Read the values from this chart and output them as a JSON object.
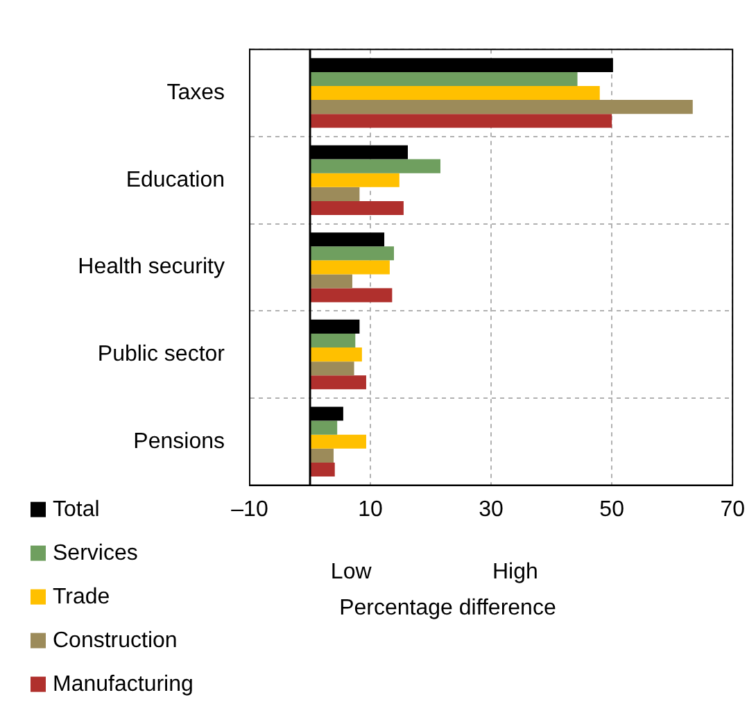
{
  "chart_data": {
    "type": "bar",
    "orientation": "horizontal",
    "categories": [
      "Taxes",
      "Education",
      "Health security",
      "Public sector",
      "Pensions"
    ],
    "series": [
      {
        "name": "Total",
        "color": "#000000",
        "values": [
          50.2,
          16.2,
          12.3,
          8.2,
          5.5
        ]
      },
      {
        "name": "Services",
        "color": "#6f9f5f",
        "values": [
          44.3,
          21.6,
          13.9,
          7.5,
          4.5
        ]
      },
      {
        "name": "Trade",
        "color": "#ffc000",
        "values": [
          48,
          14.8,
          13.2,
          8.6,
          9.3
        ]
      },
      {
        "name": "Construction",
        "color": "#9c8b5a",
        "values": [
          63.4,
          8.2,
          7,
          7.3,
          3.9
        ]
      },
      {
        "name": "Manufacturing",
        "color": "#b0302d",
        "values": [
          50,
          15.5,
          13.6,
          9.3,
          4.1
        ]
      }
    ],
    "xlim": [
      -10,
      70
    ],
    "xticks": [
      {
        "value": -10,
        "label": "–10"
      },
      10,
      30,
      50,
      70
    ],
    "xlabel": "Percentage difference",
    "annotations": [
      "Low",
      "High"
    ],
    "ref_lines": [
      {
        "axis": "x",
        "value": 0,
        "color": "#000000"
      }
    ],
    "grid": true,
    "legend": "bottom left"
  }
}
